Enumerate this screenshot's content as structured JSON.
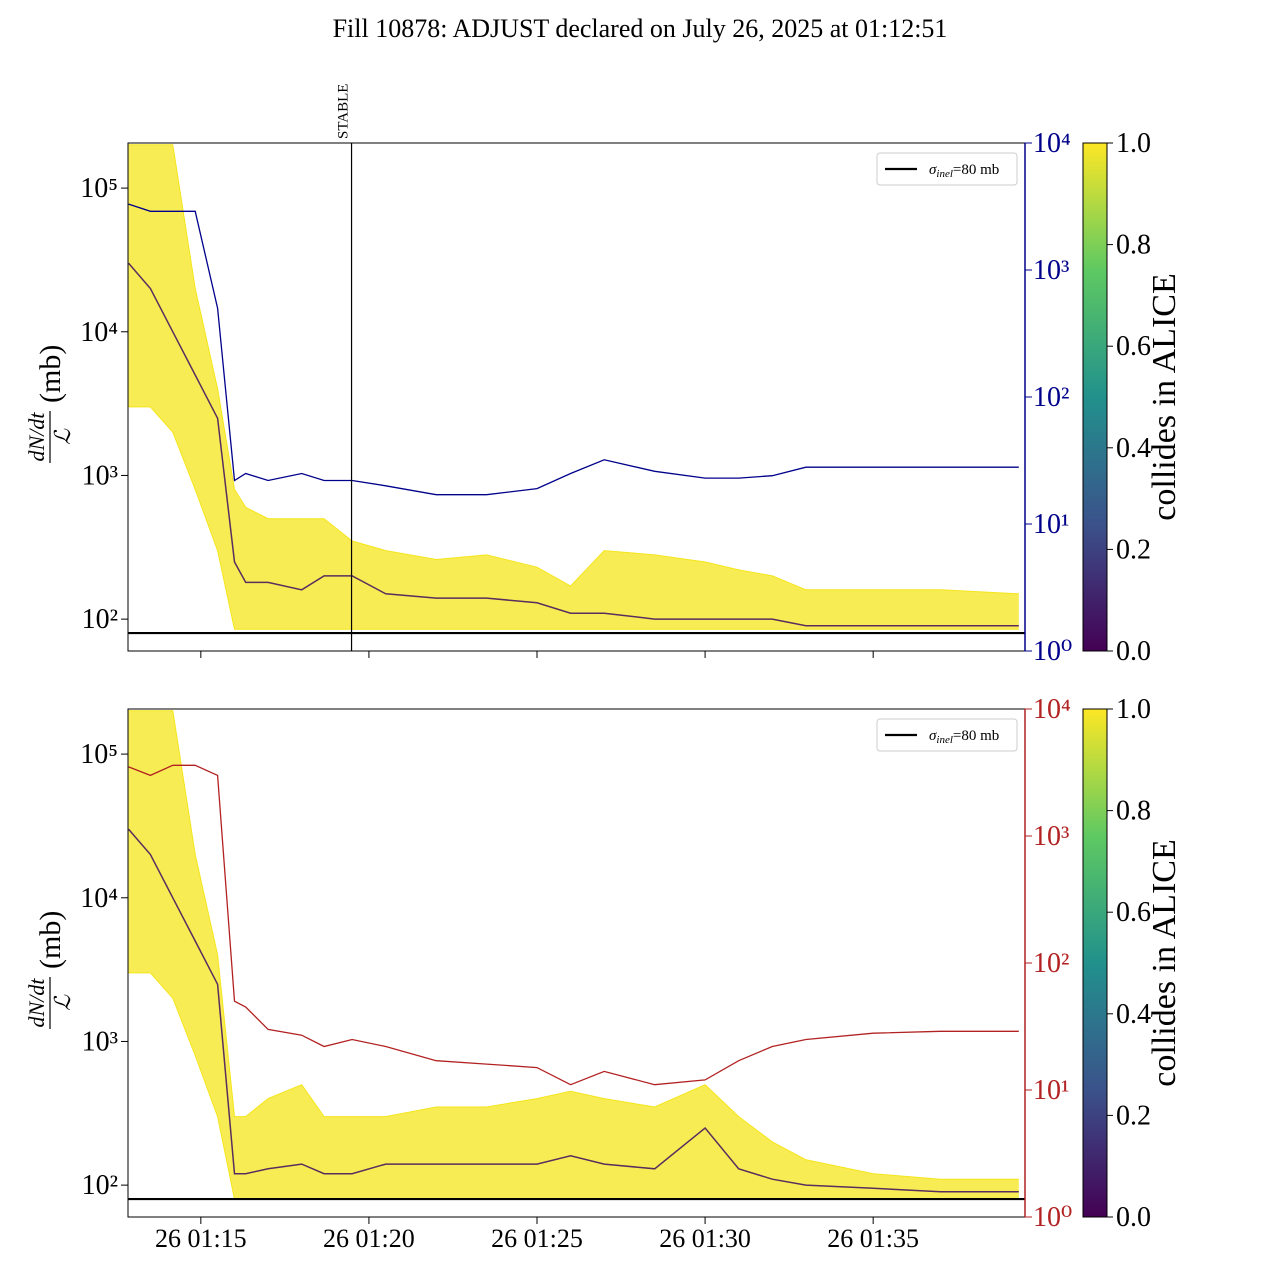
{
  "title": "Fill 10878: ADJUST declared on July 26, 2025 at 01:12:51",
  "chart_data": [
    {
      "type": "line",
      "x": [
        "26 01:12:51",
        "26 01:13:30",
        "26 01:14:10",
        "26 01:14:50",
        "26 01:15:30",
        "26 01:16:00",
        "26 01:16:20",
        "26 01:17:00",
        "26 01:18:00",
        "26 01:18:40",
        "26 01:19:30",
        "26 01:20:30",
        "26 01:22:00",
        "26 01:23:30",
        "26 01:25:00",
        "26 01:26:00",
        "26 01:27:00",
        "26 01:28:30",
        "26 01:30:00",
        "26 01:31:00",
        "26 01:32:00",
        "26 01:33:00",
        "26 01:35:00",
        "26 01:37:00",
        "26 01:39:20"
      ],
      "xlim": [
        "26 01:12:50",
        "26 01:39:31"
      ],
      "xticks": [
        "26 01:15",
        "26 01:20",
        "26 01:25",
        "26 01:30",
        "26 01:35"
      ],
      "ylabel": {
        "numerator": "dN/dt",
        "denominator": "ℒ",
        "unit": "(mb)"
      },
      "yscale": "log",
      "ylim": [
        60,
        206000
      ],
      "yticks": [
        {
          "value": 100,
          "label": "10²"
        },
        {
          "value": 1000,
          "label": "10³"
        },
        {
          "value": 10000,
          "label": "10⁴"
        },
        {
          "value": 100000,
          "label": "10⁵"
        }
      ],
      "y2scale": "log",
      "y2lim": [
        1,
        10000
      ],
      "y2color": "#00008b",
      "y2ticks": [
        {
          "value": 1,
          "label": "10⁰"
        },
        {
          "value": 10,
          "label": "10¹"
        },
        {
          "value": 100,
          "label": "10²"
        },
        {
          "value": 1000,
          "label": "10³"
        },
        {
          "value": 10000,
          "label": "10⁴"
        }
      ],
      "bundle": [
        {
          "color": "#f5e51b",
          "values": [
            200000,
            200000,
            200000,
            20000,
            4000,
            800,
            600,
            500,
            500,
            500,
            350,
            300,
            260,
            280,
            230,
            170,
            300,
            280,
            250,
            220,
            200,
            160,
            160,
            160,
            150
          ]
        },
        {
          "color": "#f5e51b",
          "values": [
            3000,
            3000,
            2000,
            800,
            300,
            85,
            85,
            85,
            85,
            85,
            85,
            85,
            85,
            85,
            85,
            85,
            85,
            85,
            85,
            85,
            85,
            85,
            85,
            85,
            85
          ]
        },
        {
          "color": "#5a2d5e",
          "values": [
            30000,
            20000,
            10000,
            5000,
            2500,
            250,
            180,
            180,
            160,
            200,
            200,
            150,
            140,
            140,
            130,
            110,
            110,
            100,
            100,
            100,
            100,
            90,
            90,
            90,
            90
          ]
        }
      ],
      "y2_series": {
        "axis": "y2",
        "color": "#00008b",
        "values": [
          3300,
          2900,
          2900,
          2900,
          500,
          22,
          25,
          22,
          25,
          22,
          22,
          20,
          17,
          17,
          19,
          25,
          32,
          26,
          23,
          23,
          24,
          28,
          28,
          28,
          28
        ]
      },
      "vlines": [
        {
          "x": "26 01:19:29",
          "label": "STABLE"
        }
      ],
      "legend": {
        "corner": "upper right",
        "entries": [
          {
            "label": [
              "σ",
              "inel",
              "=80 mb"
            ],
            "color": "#000000",
            "hline": 80
          }
        ]
      },
      "colorbar": {
        "label": "collides in ALICE",
        "lim": [
          0,
          1
        ],
        "ticks": [
          {
            "value": 0,
            "label": "0.0"
          },
          {
            "value": 0.2,
            "label": "0.2"
          },
          {
            "value": 0.4,
            "label": "0.4"
          },
          {
            "value": 0.6,
            "label": "0.6"
          },
          {
            "value": 0.8,
            "label": "0.8"
          },
          {
            "value": 1,
            "label": "1.0"
          }
        ]
      }
    },
    {
      "type": "line",
      "x": [
        "26 01:12:51",
        "26 01:13:30",
        "26 01:14:10",
        "26 01:14:50",
        "26 01:15:30",
        "26 01:16:00",
        "26 01:16:20",
        "26 01:17:00",
        "26 01:18:00",
        "26 01:18:40",
        "26 01:19:30",
        "26 01:20:30",
        "26 01:22:00",
        "26 01:23:30",
        "26 01:25:00",
        "26 01:26:00",
        "26 01:27:00",
        "26 01:28:30",
        "26 01:30:00",
        "26 01:31:00",
        "26 01:32:00",
        "26 01:33:00",
        "26 01:35:00",
        "26 01:37:00",
        "26 01:39:20"
      ],
      "xlim": [
        "26 01:12:50",
        "26 01:39:31"
      ],
      "xticks": [
        "26 01:15",
        "26 01:20",
        "26 01:25",
        "26 01:30",
        "26 01:35"
      ],
      "show_xtick_labels": true,
      "ylabel": {
        "numerator": "dN/dt",
        "denominator": "ℒ",
        "unit": "(mb)"
      },
      "yscale": "log",
      "ylim": [
        60,
        206000
      ],
      "yticks": [
        {
          "value": 100,
          "label": "10²"
        },
        {
          "value": 1000,
          "label": "10³"
        },
        {
          "value": 10000,
          "label": "10⁴"
        },
        {
          "value": 100000,
          "label": "10⁵"
        }
      ],
      "y2scale": "log",
      "y2lim": [
        1,
        10000
      ],
      "y2color": "#b22222",
      "y2ticks": [
        {
          "value": 1,
          "label": "10⁰"
        },
        {
          "value": 10,
          "label": "10¹"
        },
        {
          "value": 100,
          "label": "10²"
        },
        {
          "value": 1000,
          "label": "10³"
        },
        {
          "value": 10000,
          "label": "10⁴"
        }
      ],
      "bundle": [
        {
          "color": "#f5e51b",
          "values": [
            200000,
            200000,
            200000,
            20000,
            4000,
            300,
            300,
            400,
            500,
            300,
            300,
            300,
            350,
            350,
            400,
            450,
            400,
            350,
            500,
            300,
            200,
            150,
            120,
            110,
            110
          ]
        },
        {
          "color": "#f5e51b",
          "values": [
            3000,
            3000,
            2000,
            800,
            300,
            80,
            80,
            80,
            80,
            80,
            80,
            80,
            80,
            80,
            80,
            80,
            80,
            80,
            80,
            80,
            80,
            80,
            80,
            80,
            80
          ]
        },
        {
          "color": "#5a2d5e",
          "values": [
            30000,
            20000,
            10000,
            5000,
            2500,
            120,
            120,
            130,
            140,
            120,
            120,
            140,
            140,
            140,
            140,
            160,
            140,
            130,
            250,
            130,
            110,
            100,
            95,
            90,
            90
          ]
        }
      ],
      "y2_series": {
        "axis": "y2",
        "color": "#b22222",
        "values": [
          3500,
          3000,
          3600,
          3600,
          3000,
          50,
          45,
          30,
          27,
          22,
          25,
          22,
          17,
          16,
          15,
          11,
          14,
          11,
          12,
          17,
          22,
          25,
          28,
          29,
          29
        ]
      },
      "legend": {
        "corner": "upper right",
        "entries": [
          {
            "label": [
              "σ",
              "inel",
              "=80 mb"
            ],
            "color": "#000000",
            "hline": 80
          }
        ]
      },
      "colorbar": {
        "label": "collides in ALICE",
        "lim": [
          0,
          1
        ],
        "ticks": [
          {
            "value": 0,
            "label": "0.0"
          },
          {
            "value": 0.2,
            "label": "0.2"
          },
          {
            "value": 0.4,
            "label": "0.4"
          },
          {
            "value": 0.6,
            "label": "0.6"
          },
          {
            "value": 0.8,
            "label": "0.8"
          },
          {
            "value": 1,
            "label": "1.0"
          }
        ]
      }
    }
  ]
}
